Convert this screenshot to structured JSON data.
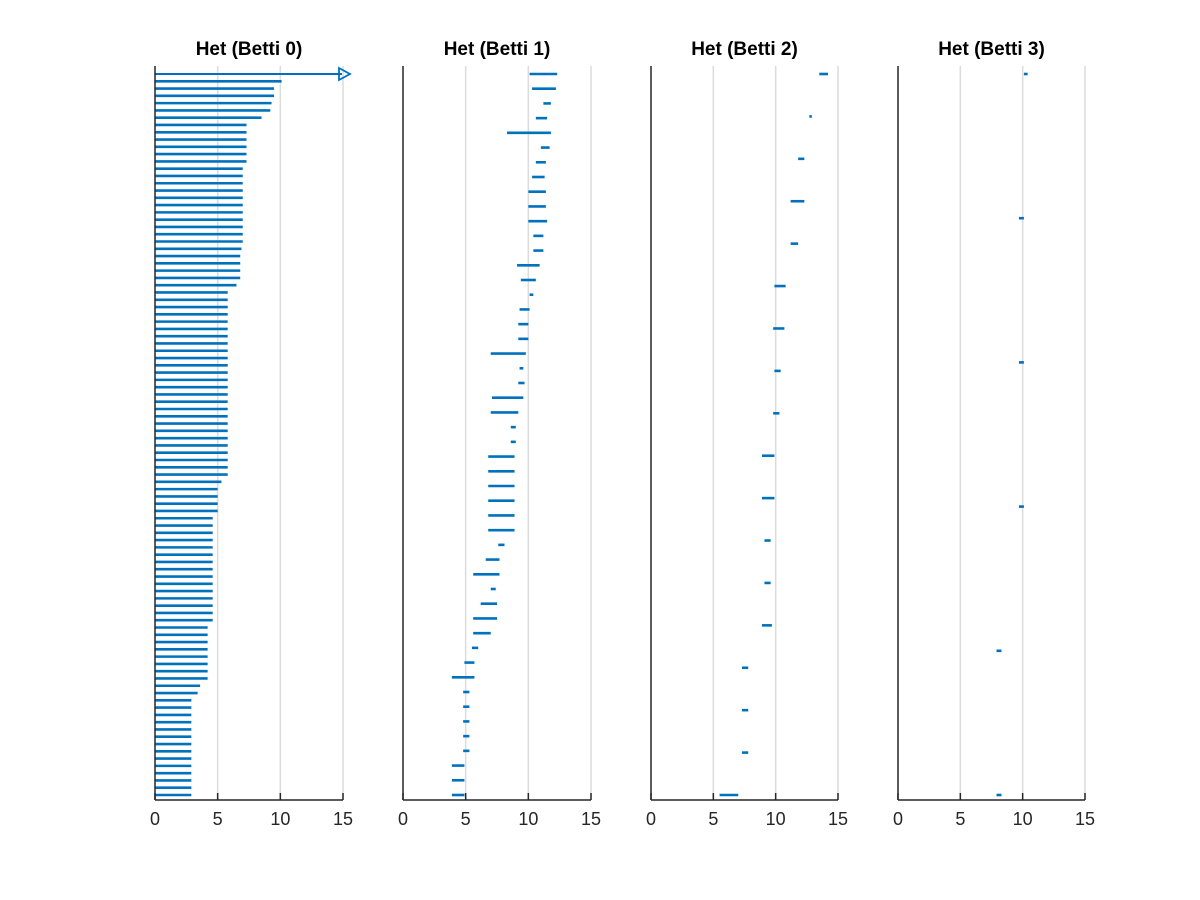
{
  "colors": {
    "bar": "#0072bd",
    "axis": "#262626",
    "grid": "#dcdcdc",
    "background": "#ffffff"
  },
  "chart_data": [
    {
      "type": "barcode",
      "title": "Het (Betti 0)",
      "xlim": [
        0,
        15
      ],
      "xticks": [
        0,
        5,
        10,
        15
      ],
      "grid": "vertical",
      "infinite_bar": {
        "start": 0
      },
      "intervals": [
        [
          0,
          10.1
        ],
        [
          0,
          9.5
        ],
        [
          0,
          9.5
        ],
        [
          0,
          9.3
        ],
        [
          0,
          9.2
        ],
        [
          0,
          8.5
        ],
        [
          0,
          7.3
        ],
        [
          0,
          7.3
        ],
        [
          0,
          7.3
        ],
        [
          0,
          7.3
        ],
        [
          0,
          7.3
        ],
        [
          0,
          7.3
        ],
        [
          0,
          7.0
        ],
        [
          0,
          7.0
        ],
        [
          0,
          7.0
        ],
        [
          0,
          7.0
        ],
        [
          0,
          7.0
        ],
        [
          0,
          7.0
        ],
        [
          0,
          7.0
        ],
        [
          0,
          7.0
        ],
        [
          0,
          7.0
        ],
        [
          0,
          7.0
        ],
        [
          0,
          7.0
        ],
        [
          0,
          6.9
        ],
        [
          0,
          6.8
        ],
        [
          0,
          6.8
        ],
        [
          0,
          6.8
        ],
        [
          0,
          6.8
        ],
        [
          0,
          6.5
        ],
        [
          0,
          5.8
        ],
        [
          0,
          5.8
        ],
        [
          0,
          5.8
        ],
        [
          0,
          5.8
        ],
        [
          0,
          5.8
        ],
        [
          0,
          5.8
        ],
        [
          0,
          5.8
        ],
        [
          0,
          5.8
        ],
        [
          0,
          5.8
        ],
        [
          0,
          5.8
        ],
        [
          0,
          5.8
        ],
        [
          0,
          5.8
        ],
        [
          0,
          5.8
        ],
        [
          0,
          5.8
        ],
        [
          0,
          5.8
        ],
        [
          0,
          5.8
        ],
        [
          0,
          5.8
        ],
        [
          0,
          5.8
        ],
        [
          0,
          5.8
        ],
        [
          0,
          5.8
        ],
        [
          0,
          5.8
        ],
        [
          0,
          5.8
        ],
        [
          0,
          5.8
        ],
        [
          0,
          5.8
        ],
        [
          0,
          5.8
        ],
        [
          0,
          5.8
        ],
        [
          0,
          5.3
        ],
        [
          0,
          5.0
        ],
        [
          0,
          5.0
        ],
        [
          0,
          5.0
        ],
        [
          0,
          5.0
        ],
        [
          0,
          4.6
        ],
        [
          0,
          4.6
        ],
        [
          0,
          4.6
        ],
        [
          0,
          4.6
        ],
        [
          0,
          4.6
        ],
        [
          0,
          4.6
        ],
        [
          0,
          4.6
        ],
        [
          0,
          4.6
        ],
        [
          0,
          4.6
        ],
        [
          0,
          4.6
        ],
        [
          0,
          4.6
        ],
        [
          0,
          4.6
        ],
        [
          0,
          4.6
        ],
        [
          0,
          4.6
        ],
        [
          0,
          4.6
        ],
        [
          0,
          4.2
        ],
        [
          0,
          4.2
        ],
        [
          0,
          4.2
        ],
        [
          0,
          4.2
        ],
        [
          0,
          4.2
        ],
        [
          0,
          4.2
        ],
        [
          0,
          4.2
        ],
        [
          0,
          4.2
        ],
        [
          0,
          3.6
        ],
        [
          0,
          3.4
        ],
        [
          0,
          2.9
        ],
        [
          0,
          2.9
        ],
        [
          0,
          2.9
        ],
        [
          0,
          2.9
        ],
        [
          0,
          2.9
        ],
        [
          0,
          2.9
        ],
        [
          0,
          2.9
        ],
        [
          0,
          2.9
        ],
        [
          0,
          2.9
        ],
        [
          0,
          2.9
        ],
        [
          0,
          2.9
        ],
        [
          0,
          2.9
        ],
        [
          0,
          2.9
        ],
        [
          0,
          2.9
        ]
      ]
    },
    {
      "type": "barcode",
      "title": "Het (Betti 1)",
      "xlim": [
        0,
        15
      ],
      "xticks": [
        0,
        5,
        10,
        15
      ],
      "grid": "vertical",
      "intervals": [
        [
          10.1,
          12.3
        ],
        [
          10.3,
          12.2
        ],
        [
          11.2,
          11.8
        ],
        [
          10.6,
          11.5
        ],
        [
          8.3,
          11.8
        ],
        [
          11.0,
          11.7
        ],
        [
          10.6,
          11.4
        ],
        [
          10.3,
          11.3
        ],
        [
          10.0,
          11.4
        ],
        [
          10.0,
          11.4
        ],
        [
          10.0,
          11.5
        ],
        [
          10.4,
          11.2
        ],
        [
          10.4,
          11.2
        ],
        [
          9.1,
          10.9
        ],
        [
          9.4,
          10.6
        ],
        [
          10.1,
          10.4
        ],
        [
          9.3,
          10.1
        ],
        [
          9.2,
          10.0
        ],
        [
          9.2,
          10.0
        ],
        [
          7.0,
          9.8
        ],
        [
          9.3,
          9.6
        ],
        [
          9.2,
          9.7
        ],
        [
          7.1,
          9.6
        ],
        [
          7.0,
          9.2
        ],
        [
          8.6,
          9.0
        ],
        [
          8.6,
          9.0
        ],
        [
          6.8,
          8.9
        ],
        [
          6.8,
          8.9
        ],
        [
          6.8,
          8.9
        ],
        [
          6.8,
          8.9
        ],
        [
          6.8,
          8.9
        ],
        [
          6.8,
          8.9
        ],
        [
          7.6,
          8.1
        ],
        [
          6.6,
          7.7
        ],
        [
          5.6,
          7.7
        ],
        [
          7.0,
          7.4
        ],
        [
          6.2,
          7.5
        ],
        [
          5.6,
          7.5
        ],
        [
          5.6,
          7.0
        ],
        [
          5.5,
          6.0
        ],
        [
          4.9,
          5.7
        ],
        [
          3.9,
          5.7
        ],
        [
          4.8,
          5.3
        ],
        [
          4.8,
          5.3
        ],
        [
          4.8,
          5.3
        ],
        [
          4.8,
          5.3
        ],
        [
          4.8,
          5.3
        ],
        [
          3.9,
          4.9
        ],
        [
          3.9,
          4.9
        ],
        [
          3.9,
          4.9
        ]
      ]
    },
    {
      "type": "barcode",
      "title": "Het (Betti 2)",
      "xlim": [
        0,
        15
      ],
      "xticks": [
        0,
        5,
        10,
        15
      ],
      "grid": "vertical",
      "intervals": [
        [
          13.5,
          14.2
        ],
        [
          12.7,
          12.9
        ],
        [
          11.8,
          12.3
        ],
        [
          11.2,
          12.3
        ],
        [
          11.2,
          11.8
        ],
        [
          9.9,
          10.8
        ],
        [
          9.8,
          10.7
        ],
        [
          9.9,
          10.4
        ],
        [
          9.8,
          10.3
        ],
        [
          8.9,
          9.9
        ],
        [
          8.9,
          9.9
        ],
        [
          9.1,
          9.6
        ],
        [
          9.1,
          9.6
        ],
        [
          8.9,
          9.7
        ],
        [
          7.3,
          7.8
        ],
        [
          7.3,
          7.8
        ],
        [
          7.3,
          7.8
        ],
        [
          5.5,
          7.0
        ]
      ]
    },
    {
      "type": "barcode",
      "title": "Het (Betti 3)",
      "xlim": [
        0,
        15
      ],
      "xticks": [
        0,
        5,
        10,
        15
      ],
      "grid": "vertical",
      "intervals": [
        [
          10.1,
          10.4
        ],
        [
          9.7,
          10.1
        ],
        [
          9.7,
          10.1
        ],
        [
          9.7,
          10.1
        ],
        [
          7.9,
          8.3
        ],
        [
          7.9,
          8.3
        ]
      ]
    }
  ]
}
